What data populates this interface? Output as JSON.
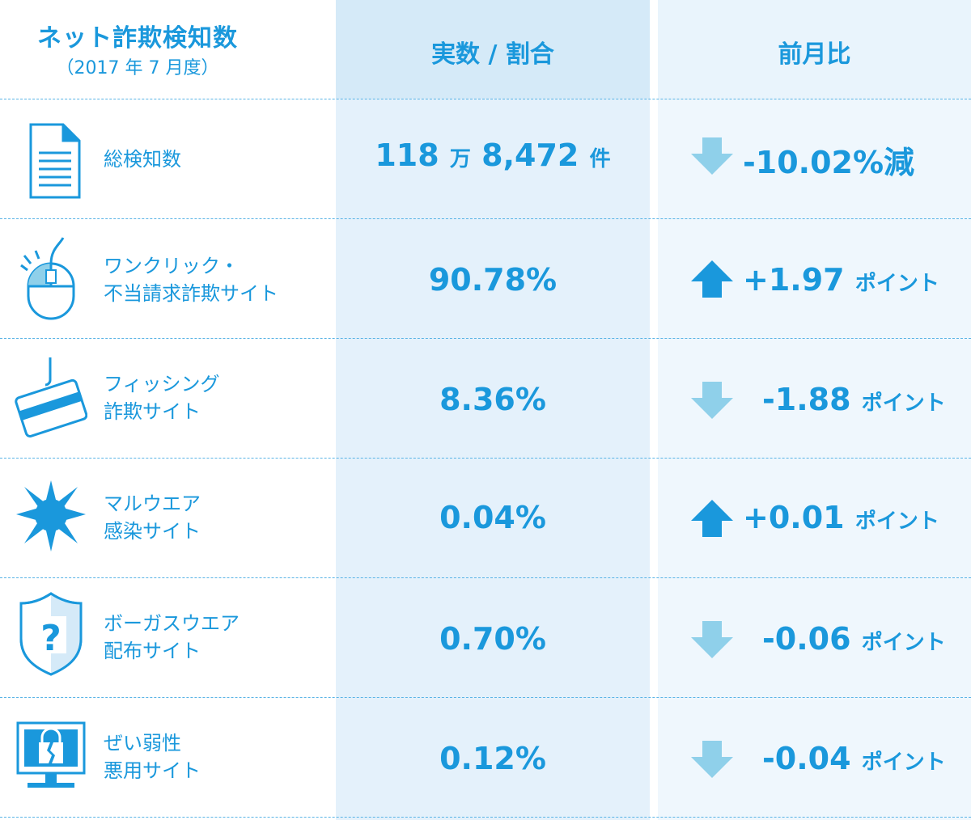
{
  "header": {
    "title": "ネット詐欺検知数",
    "subtitle": "（2017 年 7 月度）",
    "col_value": "実数 / 割合",
    "col_change": "前月比"
  },
  "rows": [
    {
      "label1": "総検知数",
      "label2": "",
      "value_main": "118",
      "value_unit1": "万",
      "value_rest": "8,472",
      "value_unit2": "件",
      "direction": "down",
      "change": "-10.02%減",
      "change_unit": "",
      "icon": "document-icon"
    },
    {
      "label1": "ワンクリック・",
      "label2": "不当請求詐欺サイト",
      "value_main": "90.78%",
      "direction": "up",
      "change": "+1.97",
      "change_unit": "ポイント",
      "icon": "mouse-icon"
    },
    {
      "label1": "フィッシング",
      "label2": "詐欺サイト",
      "value_main": "8.36%",
      "direction": "down",
      "change": "-1.88",
      "change_unit": "ポイント",
      "icon": "credit-card-hook-icon"
    },
    {
      "label1": "マルウエア",
      "label2": "感染サイト",
      "value_main": "0.04%",
      "direction": "up",
      "change": "+0.01",
      "change_unit": "ポイント",
      "icon": "virus-burst-icon"
    },
    {
      "label1": "ボーガスウエア",
      "label2": "配布サイト",
      "value_main": "0.70%",
      "direction": "down",
      "change": "-0.06",
      "change_unit": "ポイント",
      "icon": "shield-question-icon"
    },
    {
      "label1": "ぜい弱性",
      "label2": "悪用サイト",
      "value_main": "0.12%",
      "direction": "down",
      "change": "-0.04",
      "change_unit": "ポイント",
      "icon": "broken-lock-monitor-icon"
    }
  ],
  "colors": {
    "text": "#1a98dc",
    "arrow_up": "#1a98dc",
    "arrow_down": "#8fd0ea"
  },
  "chart_data": {
    "type": "table",
    "title": "ネット詐欺検知数",
    "subtitle": "（2017 年 7 月度）",
    "columns": [
      "",
      "実数 / 割合",
      "前月比"
    ],
    "rows": [
      {
        "category": "総検知数",
        "value": 1188472,
        "unit": "件",
        "change_percent": -10.02
      },
      {
        "category": "ワンクリック・不当請求詐欺サイト",
        "share_percent": 90.78,
        "change_points": 1.97
      },
      {
        "category": "フィッシング詐欺サイト",
        "share_percent": 8.36,
        "change_points": -1.88
      },
      {
        "category": "マルウエア感染サイト",
        "share_percent": 0.04,
        "change_points": 0.01
      },
      {
        "category": "ボーガスウエア配布サイト",
        "share_percent": 0.7,
        "change_points": -0.06
      },
      {
        "category": "ぜい弱性悪用サイト",
        "share_percent": 0.12,
        "change_points": -0.04
      }
    ]
  }
}
